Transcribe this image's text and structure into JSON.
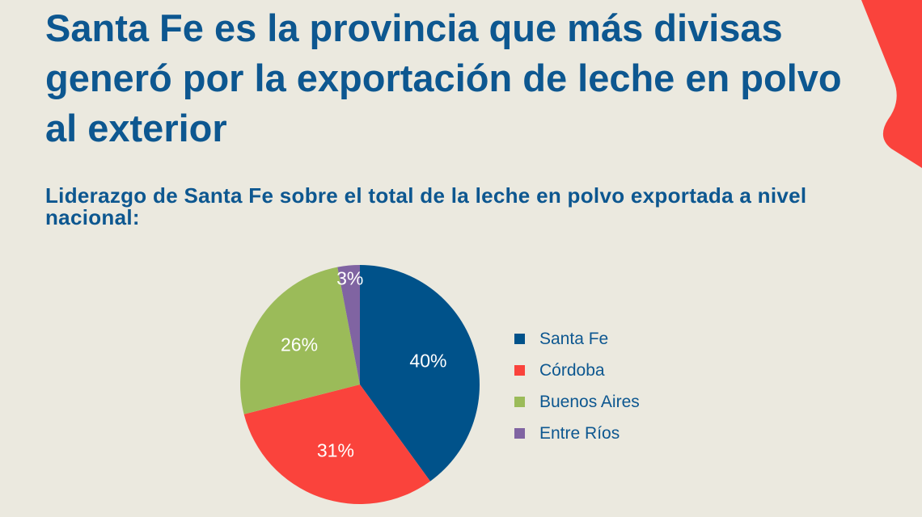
{
  "title": "Santa Fe es la provincia que más divisas generó por la exportación de leche en polvo al exterior",
  "subtitle": "Liderazgo de Santa Fe sobre el total de la leche en polvo exportada a nivel nacional:",
  "colors": {
    "background": "#ebe9df",
    "accent": "#fa433c",
    "text": "#0d5790"
  },
  "chart_data": {
    "type": "pie",
    "title": "Liderazgo de Santa Fe sobre el total de la leche en polvo exportada a nivel nacional:",
    "categories": [
      "Santa Fe",
      "Córdoba",
      "Buenos Aires",
      "Entre Ríos"
    ],
    "values": [
      40,
      31,
      26,
      3
    ],
    "labels": [
      "40%",
      "31%",
      "26%",
      "3%"
    ],
    "colors": [
      "#00528a",
      "#fa433c",
      "#9bbb59",
      "#8064a2"
    ],
    "legend": "right",
    "start": "top, clockwise"
  }
}
